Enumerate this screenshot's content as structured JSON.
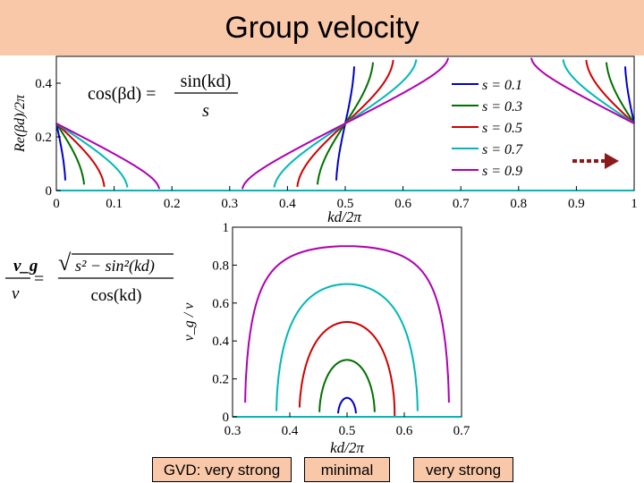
{
  "slide": {
    "title": "Group velocity",
    "bottom_labels": [
      "GVD: very strong",
      "minimal",
      "very strong"
    ]
  },
  "colors": {
    "s01": "#0000d0",
    "s03": "#007000",
    "s05": "#d00000",
    "s07": "#00b8b8",
    "s09": "#b000b0",
    "arrow": "#8b1a1a",
    "title_bg": "#f8c8a8"
  },
  "equations": {
    "eq1": {
      "lhs": "cos(βd) =",
      "num": "sin(kd)",
      "den": "s"
    },
    "eq2": {
      "lhs_num": "v_g",
      "lhs_den": "v",
      "equals": "= ",
      "rad": "s² − sin²(kd)",
      "den": "cos(kd)"
    }
  },
  "chart_data": [
    {
      "type": "line",
      "title": "",
      "xlabel": "kd/2π",
      "ylabel": "Re(βd)/2π",
      "xlim": [
        0,
        1
      ],
      "ylim": [
        0,
        0.5
      ],
      "xticks": [
        "0",
        "0.1",
        "0.2",
        "0.3",
        "0.4",
        "0.5",
        "0.6",
        "0.7",
        "0.8",
        "0.9",
        "1"
      ],
      "yticks": [
        "0",
        "0.2",
        "0.4"
      ],
      "series": [
        {
          "name": "s = 0.1",
          "s": 0.1,
          "color": "#0000d0"
        },
        {
          "name": "s = 0.3",
          "s": 0.3,
          "color": "#007000"
        },
        {
          "name": "s = 0.5",
          "s": 0.5,
          "color": "#d00000"
        },
        {
          "name": "s = 0.7",
          "s": 0.7,
          "color": "#00b8b8"
        },
        {
          "name": "s = 0.9",
          "s": 0.9,
          "color": "#b000b0"
        }
      ],
      "legend": {
        "position": "top-right",
        "entries": [
          "s = 0.1",
          "s = 0.3",
          "s = 0.5",
          "s = 0.7",
          "s = 0.9"
        ]
      }
    },
    {
      "type": "line",
      "title": "",
      "xlabel": "kd/2π",
      "ylabel": "v_g / v",
      "xlim": [
        0.3,
        0.7
      ],
      "ylim": [
        0,
        1
      ],
      "xticks": [
        "0.3",
        "0.4",
        "0.5",
        "0.6",
        "0.7"
      ],
      "yticks": [
        "0",
        "0.2",
        "0.4",
        "0.6",
        "0.8",
        "1"
      ],
      "series": [
        {
          "name": "s = 0.1",
          "s": 0.1,
          "color": "#0000d0"
        },
        {
          "name": "s = 0.3",
          "s": 0.3,
          "color": "#007000"
        },
        {
          "name": "s = 0.5",
          "s": 0.5,
          "color": "#d00000"
        },
        {
          "name": "s = 0.7",
          "s": 0.7,
          "color": "#00b8b8"
        },
        {
          "name": "s = 0.9",
          "s": 0.9,
          "color": "#b000b0"
        }
      ]
    }
  ]
}
